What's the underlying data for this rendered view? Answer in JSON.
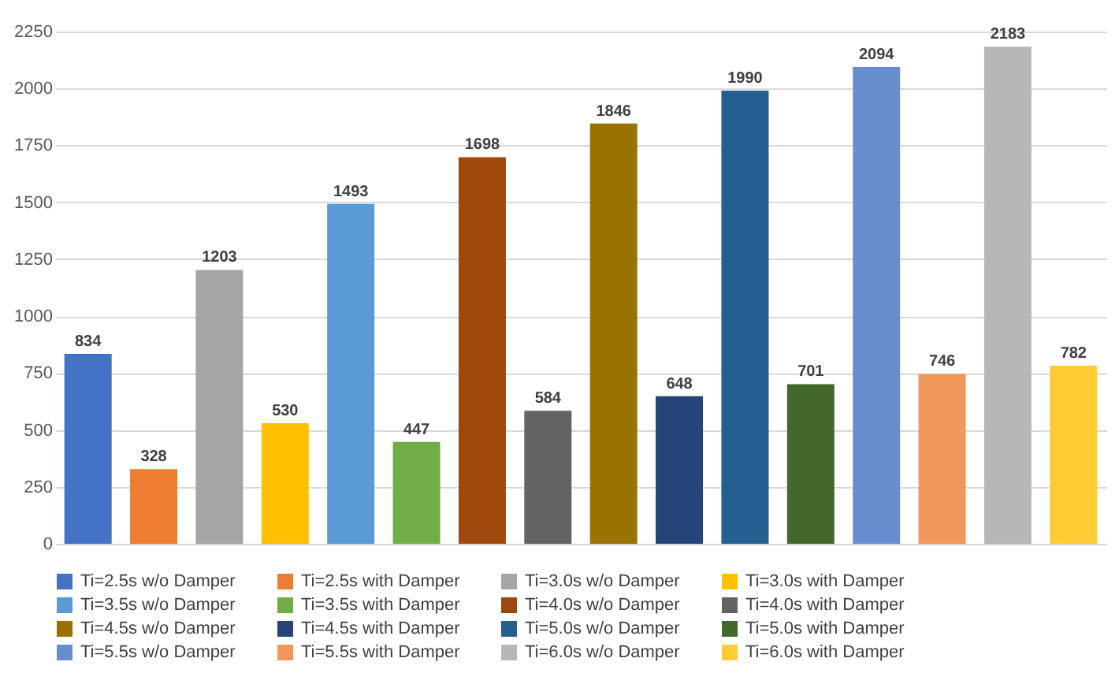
{
  "chart_data": {
    "type": "bar",
    "categories": [
      null,
      null,
      null,
      null,
      null,
      null,
      null,
      null,
      null,
      null,
      null,
      null,
      null,
      null,
      null,
      null
    ],
    "ylim": [
      0,
      2250
    ],
    "yticks": [
      0,
      250,
      500,
      750,
      1000,
      1250,
      1500,
      1750,
      2000,
      2250
    ],
    "grid": "y",
    "legend": "bottom",
    "data_labels": true,
    "tick_labels": "y",
    "series": [
      {
        "name": "Ti=2.5s w/o Damper",
        "color": "#4472c4",
        "values": [
          834,
          null,
          null,
          null,
          null,
          null,
          null,
          null,
          null,
          null,
          null,
          null,
          null,
          null,
          null,
          null
        ]
      },
      {
        "name": "Ti=2.5s with Damper",
        "color": "#ed7d31",
        "values": [
          null,
          328,
          null,
          null,
          null,
          null,
          null,
          null,
          null,
          null,
          null,
          null,
          null,
          null,
          null,
          null
        ]
      },
      {
        "name": "Ti=3.0s w/o Damper",
        "color": "#a5a5a5",
        "values": [
          null,
          null,
          1203,
          null,
          null,
          null,
          null,
          null,
          null,
          null,
          null,
          null,
          null,
          null,
          null,
          null
        ]
      },
      {
        "name": "Ti=3.0s with Damper",
        "color": "#ffc000",
        "values": [
          null,
          null,
          null,
          530,
          null,
          null,
          null,
          null,
          null,
          null,
          null,
          null,
          null,
          null,
          null,
          null
        ]
      },
      {
        "name": "Ti=3.5s w/o Damper",
        "color": "#5b9bd5",
        "values": [
          null,
          null,
          null,
          null,
          1493,
          null,
          null,
          null,
          null,
          null,
          null,
          null,
          null,
          null,
          null,
          null
        ]
      },
      {
        "name": "Ti=3.5s with Damper",
        "color": "#70ad47",
        "values": [
          null,
          null,
          null,
          null,
          null,
          447,
          null,
          null,
          null,
          null,
          null,
          null,
          null,
          null,
          null,
          null
        ]
      },
      {
        "name": "Ti=4.0s w/o Damper",
        "color": "#9e480e",
        "values": [
          null,
          null,
          null,
          null,
          null,
          null,
          1698,
          null,
          null,
          null,
          null,
          null,
          null,
          null,
          null,
          null
        ]
      },
      {
        "name": "Ti=4.0s with Damper",
        "color": "#636363",
        "values": [
          null,
          null,
          null,
          null,
          null,
          null,
          null,
          584,
          null,
          null,
          null,
          null,
          null,
          null,
          null,
          null
        ]
      },
      {
        "name": "Ti=4.5s w/o Damper",
        "color": "#997300",
        "values": [
          null,
          null,
          null,
          null,
          null,
          null,
          null,
          null,
          1846,
          null,
          null,
          null,
          null,
          null,
          null,
          null
        ]
      },
      {
        "name": "Ti=4.5s with Damper",
        "color": "#264478",
        "values": [
          null,
          null,
          null,
          null,
          null,
          null,
          null,
          null,
          null,
          648,
          null,
          null,
          null,
          null,
          null,
          null
        ]
      },
      {
        "name": "Ti=5.0s w/o Damper",
        "color": "#255e91",
        "values": [
          null,
          null,
          null,
          null,
          null,
          null,
          null,
          null,
          null,
          null,
          1990,
          null,
          null,
          null,
          null,
          null
        ]
      },
      {
        "name": "Ti=5.0s with Damper",
        "color": "#43682b",
        "values": [
          null,
          null,
          null,
          null,
          null,
          null,
          null,
          null,
          null,
          null,
          null,
          701,
          null,
          null,
          null,
          null
        ]
      },
      {
        "name": "Ti=5.5s w/o Damper",
        "color": "#698ed0",
        "values": [
          null,
          null,
          null,
          null,
          null,
          null,
          null,
          null,
          null,
          null,
          null,
          null,
          2094,
          null,
          null,
          null
        ]
      },
      {
        "name": "Ti=5.5s with Damper",
        "color": "#f1975a",
        "values": [
          null,
          null,
          null,
          null,
          null,
          null,
          null,
          null,
          null,
          null,
          null,
          null,
          null,
          746,
          null,
          null
        ]
      },
      {
        "name": "Ti=6.0s w/o Damper",
        "color": "#b7b7b7",
        "values": [
          null,
          null,
          null,
          null,
          null,
          null,
          null,
          null,
          null,
          null,
          null,
          null,
          null,
          null,
          2183,
          null
        ]
      },
      {
        "name": "Ti=6.0s with Damper",
        "color": "#ffcd33",
        "values": [
          null,
          null,
          null,
          null,
          null,
          null,
          null,
          null,
          null,
          null,
          null,
          null,
          null,
          null,
          null,
          782
        ]
      }
    ]
  }
}
